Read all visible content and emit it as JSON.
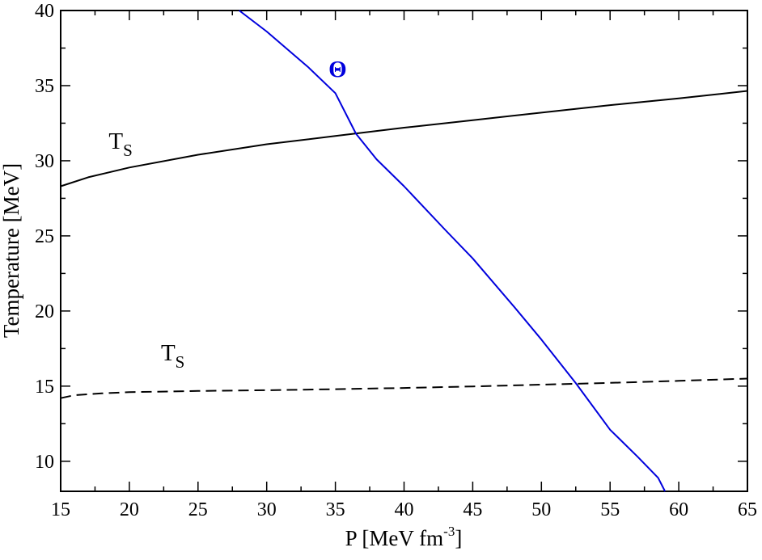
{
  "chart_data": {
    "type": "line",
    "title": "",
    "xlabel": {
      "base": "P [MeV fm",
      "sup": "-3",
      "tail": "]"
    },
    "ylabel": "Temperature [MeV]",
    "xlim": [
      15,
      65
    ],
    "ylim": [
      8,
      40
    ],
    "xticks": [
      15,
      20,
      25,
      30,
      35,
      40,
      45,
      50,
      55,
      60,
      65
    ],
    "yticks": [
      10,
      15,
      20,
      25,
      30,
      35,
      40
    ],
    "grid": false,
    "series": [
      {
        "name": "T_S (solid)",
        "label": {
          "main": "T",
          "sub": "S"
        },
        "label_at": {
          "x": 18.5,
          "y": 30.8
        },
        "color": "#000000",
        "style": "solid",
        "points": [
          [
            15,
            28.3
          ],
          [
            17,
            28.9
          ],
          [
            20,
            29.55
          ],
          [
            25,
            30.4
          ],
          [
            30,
            31.1
          ],
          [
            35,
            31.65
          ],
          [
            40,
            32.2
          ],
          [
            45,
            32.7
          ],
          [
            50,
            33.2
          ],
          [
            55,
            33.7
          ],
          [
            60,
            34.15
          ],
          [
            65,
            34.65
          ]
        ]
      },
      {
        "name": "T_S (dashed)",
        "label": {
          "main": "T",
          "sub": "S"
        },
        "label_at": {
          "x": 22.3,
          "y": 16.7
        },
        "color": "#000000",
        "style": "dashed",
        "points": [
          [
            15,
            14.2
          ],
          [
            16,
            14.4
          ],
          [
            18,
            14.52
          ],
          [
            20,
            14.6
          ],
          [
            25,
            14.68
          ],
          [
            30,
            14.73
          ],
          [
            35,
            14.8
          ],
          [
            40,
            14.88
          ],
          [
            45,
            14.98
          ],
          [
            50,
            15.1
          ],
          [
            55,
            15.22
          ],
          [
            60,
            15.35
          ],
          [
            65,
            15.5
          ]
        ]
      },
      {
        "name": "Theta",
        "label": {
          "main": "Θ"
        },
        "label_at": {
          "x": 34.5,
          "y": 35.6
        },
        "color": "#0000dd",
        "style": "solid",
        "points": [
          [
            28,
            40
          ],
          [
            30,
            38.6
          ],
          [
            33,
            36.25
          ],
          [
            35,
            34.5
          ],
          [
            36.5,
            31.8
          ],
          [
            38,
            30.1
          ],
          [
            40,
            28.3
          ],
          [
            43,
            25.4
          ],
          [
            45,
            23.5
          ],
          [
            48,
            20.3
          ],
          [
            50,
            18.1
          ],
          [
            52.5,
            15.2
          ],
          [
            55,
            12.1
          ],
          [
            57,
            10.3
          ],
          [
            58.5,
            8.9
          ],
          [
            59,
            8
          ]
        ]
      }
    ]
  }
}
